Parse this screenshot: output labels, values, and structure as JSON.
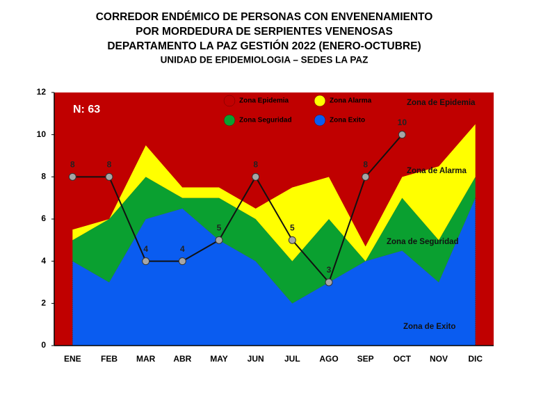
{
  "chart_data": {
    "type": "stacked_area_line",
    "title": [
      "CORREDOR ENDÉMICO DE PERSONAS CON ENVENENAMIENTO",
      "POR MORDEDURA DE SERPIENTES VENENOSAS",
      "DEPARTAMENTO  LA PAZ GESTIÓN 2022 (ENERO-OCTUBRE)",
      "UNIDAD DE EPIDEMIOLOGIA – SEDES LA PAZ"
    ],
    "annotations": [
      "N: 63",
      "Zona de  Epidemia",
      "Zona de Alarma",
      "Zona de Seguridad",
      "Zona de Exito"
    ],
    "categories": [
      "ENE",
      "FEB",
      "MAR",
      "ABR",
      "MAY",
      "JUN",
      "JUL",
      "AGO",
      "SEP",
      "OCT",
      "NOV",
      "DIC"
    ],
    "ylim": [
      0,
      12
    ],
    "yticks": [
      0,
      2,
      4,
      6,
      8,
      10,
      12
    ],
    "legend_order": [
      3,
      2,
      1,
      0
    ],
    "series": [
      {
        "name": "Zona Exito",
        "color": "#0a5cf0",
        "values": [
          4,
          3,
          6,
          6.5,
          5,
          4,
          2,
          3,
          4,
          4.5,
          3,
          7
        ]
      },
      {
        "name": "Zona Seguridad",
        "color": "#0aa030",
        "values": [
          1,
          3,
          2,
          0.5,
          2,
          2,
          2,
          3,
          0,
          2.5,
          2,
          1
        ]
      },
      {
        "name": "Zona Alarma",
        "color": "#ffff00",
        "values": [
          0.5,
          0,
          1.5,
          0.5,
          0.5,
          0.5,
          3.5,
          2,
          0.7,
          1,
          3.5,
          2.5
        ]
      },
      {
        "name": "Zona Epidemia",
        "color": "#c00000",
        "values": [
          6.5,
          6,
          2.5,
          4.5,
          4.5,
          5.5,
          4.5,
          4,
          7.3,
          4,
          3.5,
          1.5
        ]
      }
    ],
    "cases": {
      "color": "#111111",
      "marker_color": "#a6a6a6",
      "values": [
        8,
        8,
        4,
        4,
        5,
        8,
        5,
        3,
        8,
        10,
        null,
        null
      ]
    }
  }
}
